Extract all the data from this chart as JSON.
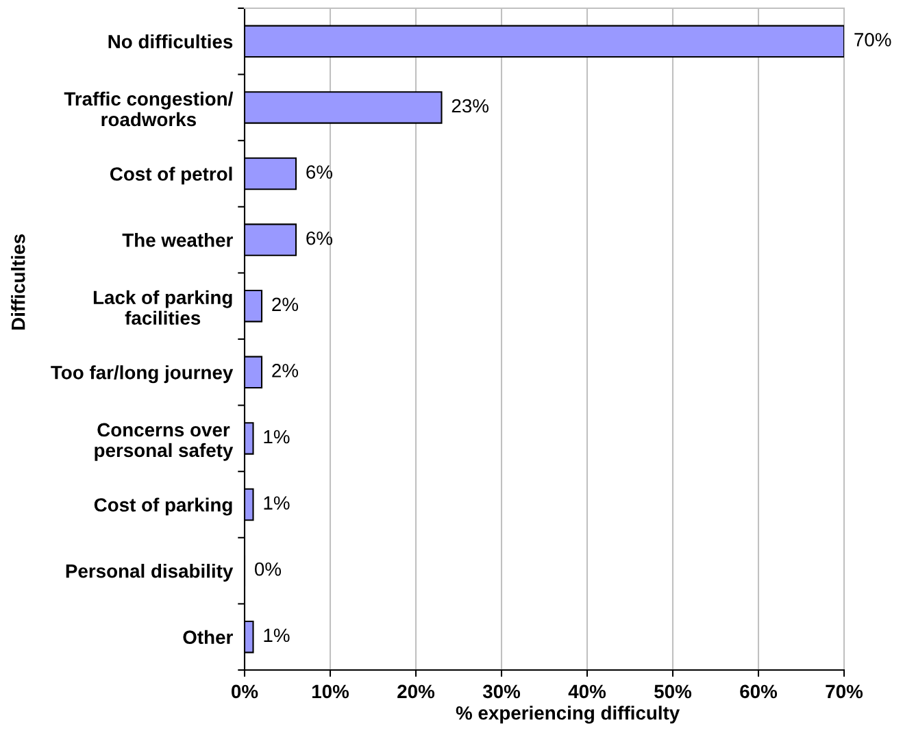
{
  "chart_data": {
    "type": "bar",
    "orientation": "horizontal",
    "xlabel": "% experiencing difficulty",
    "ylabel": "Difficulties",
    "categories": [
      "No difficulties",
      "Traffic congestion/\nroadworks",
      "Cost of petrol",
      "The weather",
      "Lack of parking\nfacilities",
      "Too far/long journey",
      "Concerns over\npersonal safety",
      "Cost of parking",
      "Personal disability",
      "Other"
    ],
    "values": [
      70,
      23,
      6,
      6,
      2,
      2,
      1,
      1,
      0,
      1
    ],
    "value_labels": [
      "70%",
      "23%",
      "6%",
      "6%",
      "2%",
      "2%",
      "1%",
      "1%",
      "0%",
      "1%"
    ],
    "color": "#9999ff",
    "xlim": [
      0,
      70
    ],
    "xticks": [
      {
        "value": 0,
        "label": "0%"
      },
      {
        "value": 10,
        "label": "10%"
      },
      {
        "value": 20,
        "label": "20%"
      },
      {
        "value": 30,
        "label": "30%"
      },
      {
        "value": 40,
        "label": "40%"
      },
      {
        "value": 50,
        "label": "50%"
      },
      {
        "value": 60,
        "label": "60%"
      },
      {
        "value": 70,
        "label": "70%"
      }
    ],
    "grid": "x"
  }
}
